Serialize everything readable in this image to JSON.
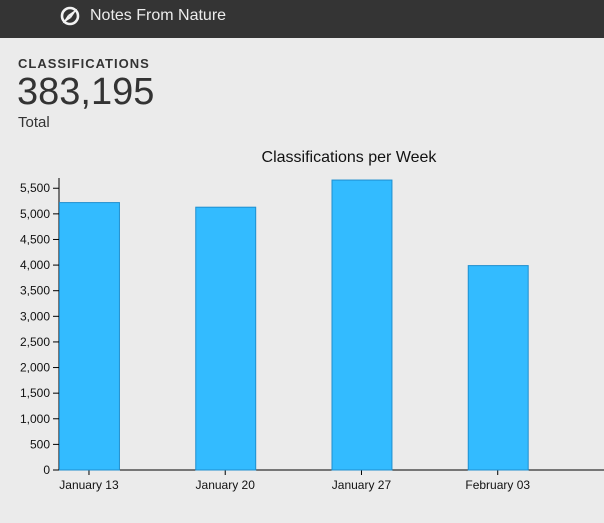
{
  "header": {
    "brand": "Notes From Nature",
    "icon": "compass-icon"
  },
  "stat": {
    "label": "CLASSIFICATIONS",
    "value": "383,195",
    "sublabel": "Total"
  },
  "colors": {
    "bar_fill": "#33bbff",
    "bar_stroke": "#1f8fcf",
    "topbar": "#343434",
    "background": "#ebebeb"
  },
  "chart_data": {
    "type": "bar",
    "title": "Classifications per Week",
    "categories": [
      "January 13",
      "January 20",
      "January 27",
      "February 03"
    ],
    "values": [
      5220,
      5130,
      5660,
      3990
    ],
    "ylim": [
      0,
      5700
    ],
    "yticks": [
      0,
      500,
      1000,
      1500,
      2000,
      2500,
      3000,
      3500,
      4000,
      4500,
      5000,
      5500
    ],
    "ytick_labels": [
      "0",
      "500",
      "1,000",
      "1,500",
      "2,000",
      "2,500",
      "3,000",
      "3,500",
      "4,000",
      "4,500",
      "5,000",
      "5,500"
    ],
    "grid": false
  }
}
